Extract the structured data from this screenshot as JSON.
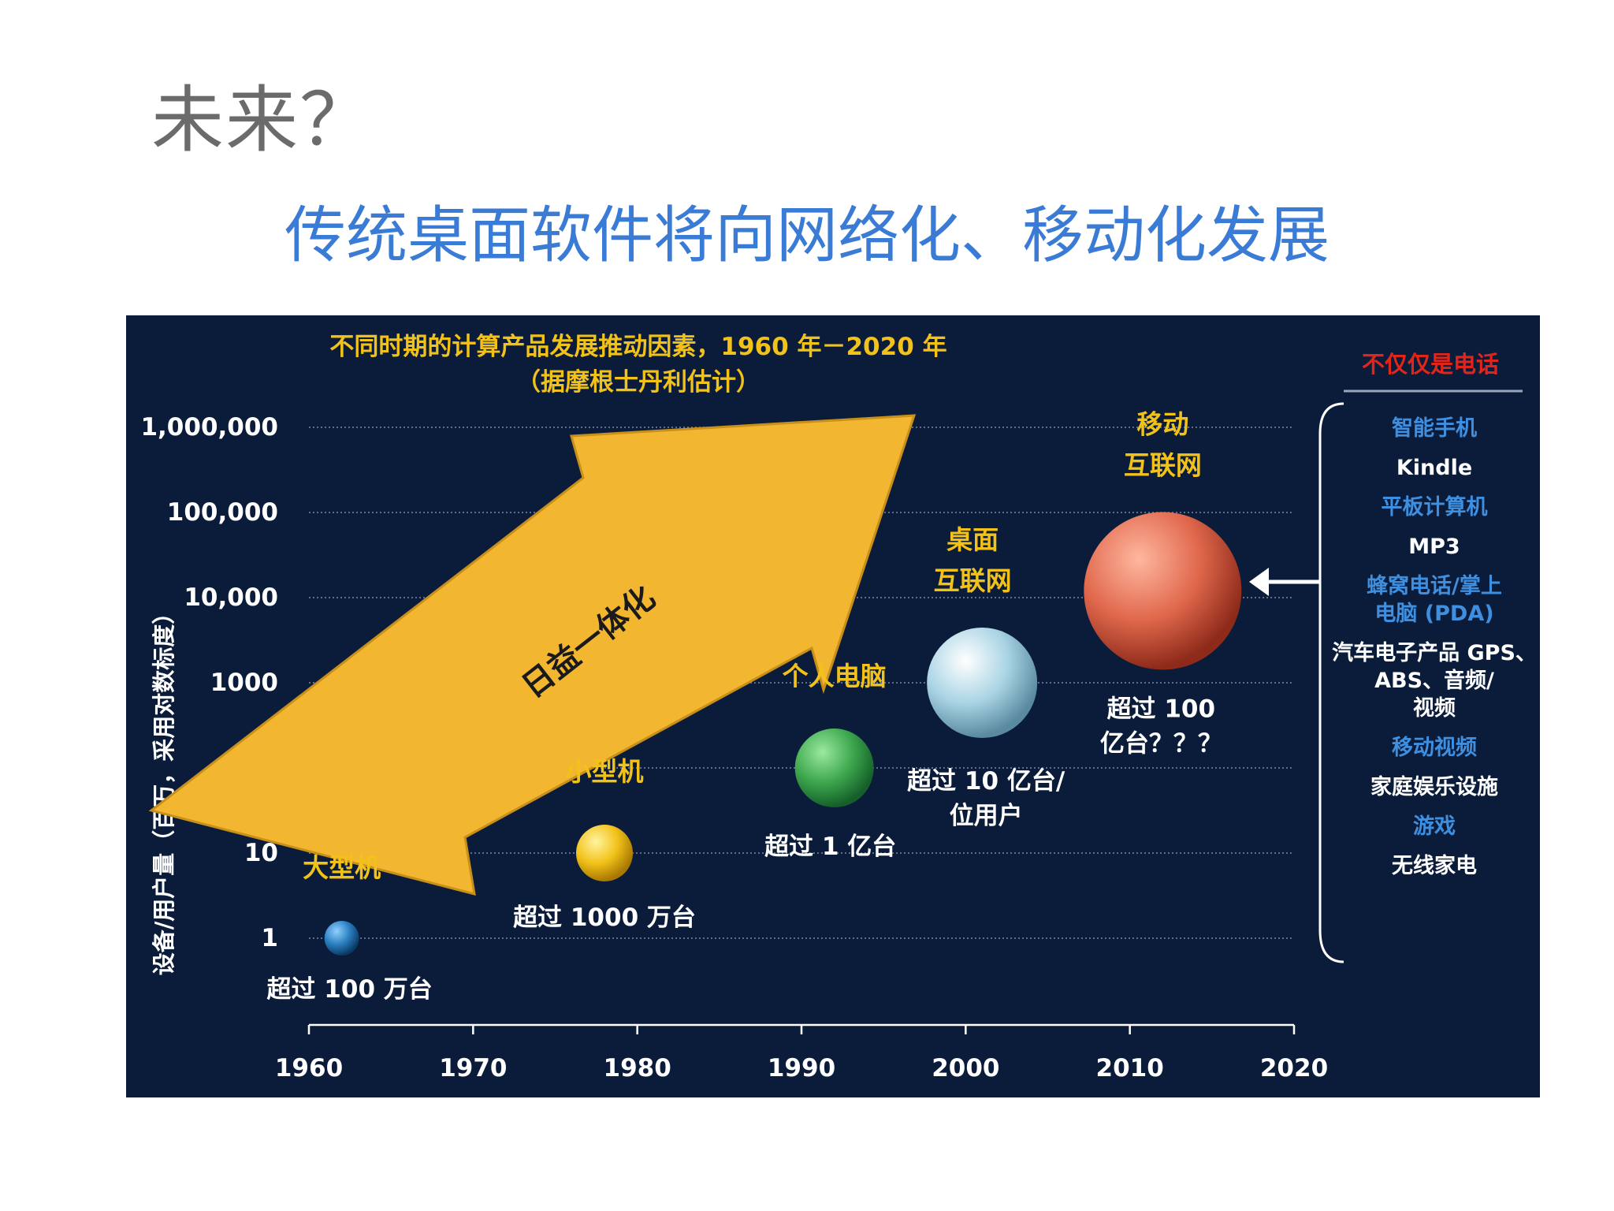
{
  "slide": {
    "title": "未来？",
    "subtitle": "传统桌面软件将向网络化、移动化发展"
  },
  "chart_data": {
    "type": "scatter",
    "title": "不同时期的计算产品发展推动因素，1960 年－2020 年",
    "subtitle": "（据摩根士丹利估计）",
    "ylabel": "设备/用户量（百万，采用对数标度）",
    "xlabel": "",
    "x_ticks": [
      "1960",
      "1970",
      "1980",
      "1990",
      "2000",
      "2010",
      "2020"
    ],
    "y_ticks": [
      "1",
      "10",
      "100",
      "1000",
      "10,000",
      "100,000",
      "1,000,000"
    ],
    "xlim": [
      1960,
      2020
    ],
    "ylim": [
      1,
      1000000
    ],
    "y_scale": "log",
    "grid": true,
    "arrow_label": "日益一体化",
    "points": [
      {
        "name": "大型机",
        "x": 1962,
        "y": 1,
        "note": "超过 100 万台",
        "color": "#2a7fc0"
      },
      {
        "name": "小型机",
        "x": 1978,
        "y": 10,
        "note": "超过 1000 万台",
        "color": "#f2c21a"
      },
      {
        "name": "个人电脑",
        "x": 1992,
        "y": 100,
        "note": "超过 1 亿台",
        "color": "#3ea84e"
      },
      {
        "name_lines": [
          "桌面",
          "互联网"
        ],
        "x": 2001,
        "y": 1000,
        "note_lines": [
          "超过 10 亿台/",
          "位用户"
        ],
        "color": "#a9d4e4"
      },
      {
        "name_lines": [
          "移动",
          "互联网"
        ],
        "x": 2012,
        "y": 12000,
        "note_lines": [
          "超过 100",
          "亿台？？？"
        ],
        "color": "#e0684c"
      }
    ],
    "side_panel": {
      "heading": "不仅仅是电话",
      "items": [
        {
          "text": "智能手机",
          "color": "#3f8fe0"
        },
        {
          "text": "Kindle",
          "color": "#ffffff"
        },
        {
          "text": "平板计算机",
          "color": "#3f8fe0"
        },
        {
          "text": "MP3",
          "color": "#ffffff"
        },
        {
          "lines": [
            "蜂窝电话/掌上",
            "电脑 (PDA)"
          ],
          "color": "#3f8fe0"
        },
        {
          "lines": [
            "汽车电子产品 GPS、",
            "ABS、音频/",
            "视频"
          ],
          "color": "#ffffff"
        },
        {
          "text": "移动视频",
          "color": "#3f8fe0"
        },
        {
          "text": "家庭娱乐设施",
          "color": "#ffffff"
        },
        {
          "text": "游戏",
          "color": "#3f8fe0"
        },
        {
          "text": "无线家电",
          "color": "#ffffff"
        }
      ]
    },
    "colors": {
      "background": "#0a1c3a",
      "label": "#f2c21a",
      "axis_text": "#ffffff",
      "arrow": "#f2b630",
      "heading_red": "#e0251b"
    }
  }
}
